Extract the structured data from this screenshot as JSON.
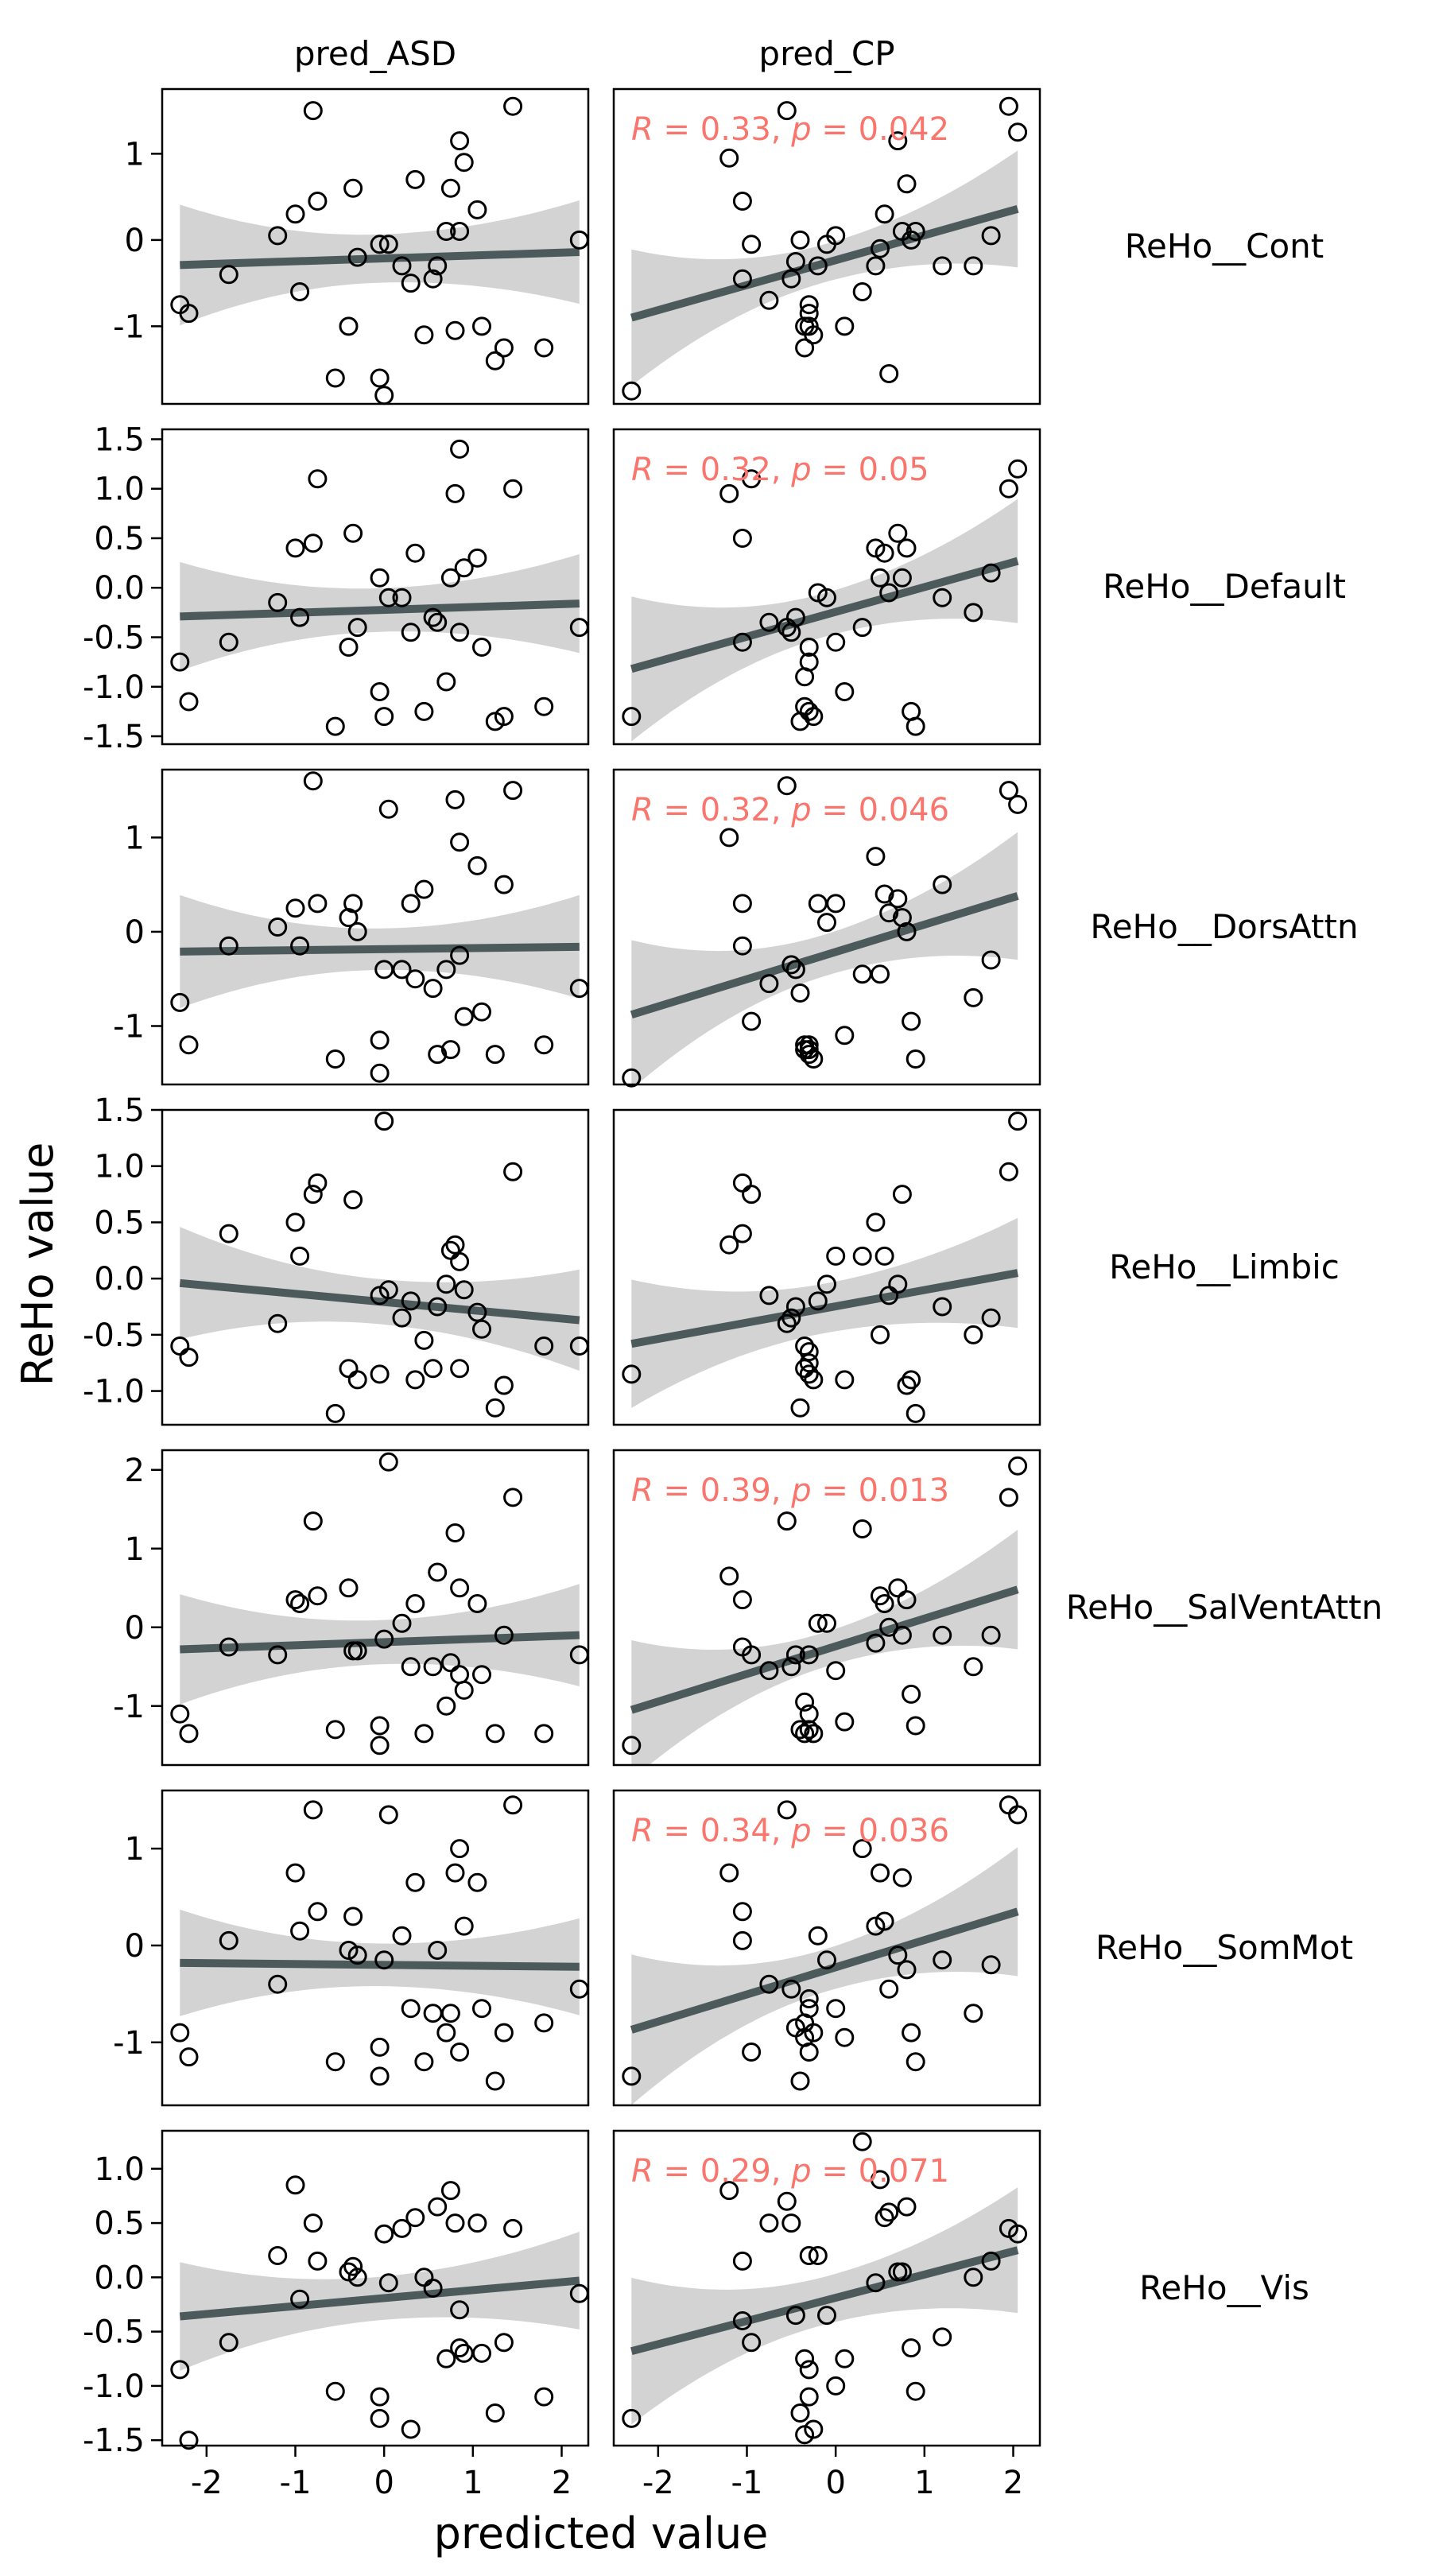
{
  "chart_data": {
    "type": "scatter",
    "xlabel": "predicted value",
    "ylabel": "ReHo value",
    "columns": [
      "pred_ASD",
      "pred_CP"
    ],
    "rows": [
      "ReHo__Cont",
      "ReHo__Default",
      "ReHo__DorsAttn",
      "ReHo__Limbic",
      "ReHo__SalVentAttn",
      "ReHo__SomMot",
      "ReHo__Vis"
    ],
    "xlim": [
      -2.5,
      2.3
    ],
    "x_ticks": [
      "-2",
      "-1",
      "0",
      "1",
      "2"
    ],
    "x_tick_values": [
      -2,
      -1,
      0,
      1,
      2
    ],
    "colors": {
      "points": "#000000",
      "fit_line": "#4d5a5c",
      "ci_band": "#d3d3d3",
      "annotation": "#f8766d"
    },
    "ASD_x": [
      -2.3,
      -2.2,
      -1.75,
      -1.2,
      -1.0,
      -0.95,
      -0.8,
      -0.75,
      -0.55,
      -0.4,
      -0.35,
      -0.3,
      -0.05,
      -0.05,
      0.0,
      0.05,
      0.2,
      0.3,
      0.35,
      0.45,
      0.55,
      0.6,
      0.7,
      0.75,
      0.8,
      0.85,
      0.85,
      0.9,
      1.05,
      1.1,
      1.25,
      1.35,
      1.45,
      1.8,
      2.2
    ],
    "CP_x": [
      -2.3,
      -1.2,
      -1.05,
      -1.05,
      -0.95,
      -0.75,
      -0.55,
      -0.5,
      -0.45,
      -0.4,
      -0.35,
      -0.35,
      -0.3,
      -0.3,
      -0.3,
      -0.25,
      -0.2,
      -0.1,
      0.0,
      0.1,
      0.3,
      0.45,
      0.5,
      0.55,
      0.6,
      0.7,
      0.75,
      0.8,
      0.85,
      0.9,
      1.2,
      1.55,
      1.75,
      1.95,
      2.05
    ],
    "panels": [
      {
        "row": "ReHo__Cont",
        "ylim": [
          -1.9,
          1.75
        ],
        "y_ticks": [
          "-1",
          "0",
          "1"
        ],
        "y_tick_values": [
          -1,
          0,
          1
        ],
        "ASD": {
          "y": [
            -0.75,
            -0.85,
            -0.4,
            0.05,
            0.3,
            -0.6,
            1.5,
            0.45,
            -1.6,
            -1.0,
            0.6,
            -0.2,
            -0.05,
            -1.6,
            -1.8,
            -0.05,
            -0.3,
            -0.5,
            0.7,
            -1.1,
            -0.45,
            -0.3,
            0.1,
            0.6,
            -1.05,
            0.1,
            1.15,
            0.9,
            0.35,
            -1.0,
            -1.4,
            -1.25,
            1.55,
            -1.25,
            0.0
          ],
          "fit": [
            -2.3,
            -0.29,
            2.2,
            -0.14
          ],
          "ci_half": [
            0.7,
            0.28,
            0.6
          ]
        },
        "CP": {
          "y": [
            -1.75,
            0.95,
            0.45,
            -0.45,
            -0.05,
            -0.7,
            1.5,
            -0.45,
            -0.25,
            0.0,
            -1.0,
            -1.25,
            -0.85,
            -0.75,
            -1.0,
            -1.1,
            -0.3,
            -0.05,
            0.05,
            -1.0,
            -0.6,
            -0.3,
            -0.1,
            0.3,
            -1.55,
            1.15,
            0.1,
            0.65,
            0.0,
            0.1,
            -0.3,
            -0.3,
            0.05,
            1.55,
            1.25
          ],
          "fit": [
            -2.3,
            -0.9,
            2.05,
            0.36
          ],
          "annotation": {
            "R": "0.33",
            "p": "0.042"
          }
        }
      },
      {
        "row": "ReHo__Default",
        "ylim": [
          -1.58,
          1.6
        ],
        "y_ticks": [
          "-1.5",
          "-1.0",
          "-0.5",
          "0.0",
          "0.5",
          "1.0",
          "1.5"
        ],
        "y_tick_values": [
          -1.5,
          -1.0,
          -0.5,
          0.0,
          0.5,
          1.0,
          1.5
        ],
        "ASD": {
          "y": [
            -0.75,
            -1.15,
            -0.55,
            -0.15,
            0.4,
            -0.3,
            0.45,
            1.1,
            -1.4,
            -0.6,
            0.55,
            -0.4,
            0.1,
            -1.05,
            -1.3,
            -0.1,
            -0.1,
            -0.45,
            0.35,
            -1.25,
            -0.3,
            -0.35,
            -0.95,
            0.1,
            0.95,
            1.4,
            -0.45,
            0.2,
            0.3,
            -0.6,
            -1.35,
            -1.3,
            1.0,
            -1.2,
            -0.4
          ],
          "fit": [
            -2.3,
            -0.29,
            2.2,
            -0.16
          ],
          "ci_half": [
            0.55,
            0.22,
            0.5
          ]
        },
        "CP": {
          "y": [
            -1.3,
            0.95,
            0.5,
            -0.55,
            1.1,
            -0.35,
            -0.4,
            -0.45,
            -0.3,
            -1.35,
            -0.9,
            -1.2,
            -0.6,
            -0.75,
            -1.25,
            -1.3,
            -0.05,
            -0.1,
            -0.55,
            -1.05,
            -0.4,
            0.4,
            0.1,
            0.35,
            -0.05,
            0.55,
            0.1,
            0.4,
            -1.25,
            -1.4,
            -0.1,
            -0.25,
            0.15,
            1.0,
            1.2
          ],
          "fit": [
            -2.3,
            -0.82,
            2.05,
            0.27
          ],
          "annotation": {
            "R": "0.32",
            "p": "0.05"
          }
        }
      },
      {
        "row": "ReHo__DorsAttn",
        "ylim": [
          -1.62,
          1.72
        ],
        "y_ticks": [
          "-1",
          "0",
          "1"
        ],
        "y_tick_values": [
          -1,
          0,
          1
        ],
        "ASD": {
          "y": [
            -0.75,
            -1.2,
            -0.15,
            0.05,
            0.25,
            -0.15,
            1.6,
            0.3,
            -1.35,
            0.15,
            0.3,
            0.0,
            -1.15,
            -1.5,
            -0.4,
            1.3,
            -0.4,
            0.3,
            -0.5,
            0.45,
            -0.6,
            -1.3,
            -0.4,
            -1.25,
            1.4,
            -0.25,
            0.95,
            -0.9,
            0.7,
            -0.85,
            -1.3,
            0.5,
            1.5,
            -1.2,
            -0.6
          ],
          "fit": [
            -2.3,
            -0.21,
            2.2,
            -0.16
          ],
          "ci_half": [
            0.6,
            0.22,
            0.55
          ]
        },
        "CP": {
          "y": [
            -1.55,
            1.0,
            0.3,
            -0.15,
            -0.95,
            -0.55,
            1.55,
            -0.35,
            -0.4,
            -0.65,
            -1.25,
            -1.2,
            -1.3,
            -1.25,
            -1.2,
            -1.35,
            0.3,
            0.1,
            0.3,
            -1.1,
            -0.45,
            0.8,
            -0.45,
            0.4,
            0.2,
            0.35,
            0.15,
            0.0,
            -0.95,
            -1.35,
            0.5,
            -0.7,
            -0.3,
            1.5,
            1.35
          ],
          "fit": [
            -2.3,
            -0.88,
            2.05,
            0.38
          ],
          "annotation": {
            "R": "0.32",
            "p": "0.046"
          }
        }
      },
      {
        "row": "ReHo__Limbic",
        "ylim": [
          -1.3,
          1.5
        ],
        "y_ticks": [
          "-1.0",
          "-0.5",
          "0.0",
          "0.5",
          "1.0",
          "1.5"
        ],
        "y_tick_values": [
          -1.0,
          -0.5,
          0.0,
          0.5,
          1.0,
          1.5
        ],
        "ASD": {
          "y": [
            -0.6,
            -0.7,
            0.4,
            -0.4,
            0.5,
            0.2,
            0.75,
            0.85,
            -1.2,
            -0.8,
            0.7,
            -0.9,
            -0.85,
            -0.15,
            1.4,
            -0.1,
            -0.35,
            -0.2,
            -0.9,
            -0.55,
            -0.8,
            -0.25,
            -0.05,
            0.25,
            0.3,
            0.15,
            -0.8,
            -0.1,
            -0.3,
            -0.45,
            -1.15,
            -0.95,
            0.95,
            -0.6,
            -0.6
          ],
          "fit": [
            -2.3,
            -0.04,
            2.2,
            -0.37
          ],
          "ci_half": [
            0.5,
            0.2,
            0.45
          ]
        },
        "CP": {
          "y": [
            -0.85,
            0.3,
            0.85,
            0.4,
            0.75,
            -0.15,
            -0.4,
            -0.35,
            -0.25,
            -1.15,
            -0.6,
            -0.8,
            -0.65,
            -0.75,
            -0.85,
            -0.9,
            -0.2,
            -0.05,
            0.2,
            -0.9,
            0.2,
            0.5,
            -0.5,
            0.2,
            -0.15,
            -0.05,
            0.75,
            -0.95,
            -0.9,
            -1.2,
            -0.25,
            -0.5,
            -0.35,
            0.95,
            1.4
          ],
          "fit": [
            -2.3,
            -0.58,
            2.05,
            0.05
          ],
          "annotation": null
        }
      },
      {
        "row": "ReHo__SalVentAttn",
        "ylim": [
          -1.75,
          2.25
        ],
        "y_ticks": [
          "-1",
          "0",
          "1",
          "2"
        ],
        "y_tick_values": [
          -1,
          0,
          1,
          2
        ],
        "ASD": {
          "y": [
            -1.1,
            -1.35,
            -0.25,
            -0.35,
            0.35,
            0.3,
            1.35,
            0.4,
            -1.3,
            0.5,
            -0.3,
            -0.3,
            -1.5,
            -1.25,
            -0.15,
            2.1,
            0.05,
            -0.5,
            0.3,
            -1.35,
            -0.5,
            0.7,
            -1.0,
            -0.45,
            1.2,
            0.5,
            -0.6,
            -0.8,
            0.3,
            -0.6,
            -1.35,
            -0.1,
            1.65,
            -1.35,
            -0.35
          ],
          "fit": [
            -2.3,
            -0.28,
            2.2,
            -0.1
          ],
          "ci_half": [
            0.7,
            0.28,
            0.65
          ]
        },
        "CP": {
          "y": [
            -1.5,
            0.65,
            0.35,
            -0.25,
            -0.35,
            -0.55,
            1.35,
            -0.5,
            -0.35,
            -1.3,
            -0.95,
            -1.35,
            -1.1,
            -1.3,
            -0.35,
            -1.35,
            0.05,
            0.05,
            -0.55,
            -1.2,
            1.25,
            -0.2,
            0.4,
            0.3,
            0.0,
            0.5,
            -0.1,
            0.35,
            -0.85,
            -1.25,
            -0.1,
            -0.5,
            -0.1,
            1.65,
            2.05
          ],
          "fit": [
            -2.3,
            -1.05,
            2.05,
            0.48
          ],
          "annotation": {
            "R": "0.39",
            "p": "0.013"
          }
        }
      },
      {
        "row": "ReHo__SomMot",
        "ylim": [
          -1.65,
          1.6
        ],
        "y_ticks": [
          "-1",
          "0",
          "1"
        ],
        "y_tick_values": [
          -1,
          0,
          1
        ],
        "ASD": {
          "y": [
            -0.9,
            -1.15,
            0.05,
            -0.4,
            0.75,
            0.15,
            1.4,
            0.35,
            -1.2,
            -0.05,
            0.3,
            -0.1,
            -1.35,
            -1.05,
            -0.15,
            1.35,
            0.1,
            -0.65,
            0.65,
            -1.2,
            -0.7,
            -0.05,
            -0.9,
            -0.7,
            0.75,
            1.0,
            -1.1,
            0.2,
            0.65,
            -0.65,
            -1.4,
            -0.9,
            1.45,
            -0.8,
            -0.45
          ],
          "fit": [
            -2.3,
            -0.18,
            2.2,
            -0.22
          ],
          "ci_half": [
            0.55,
            0.22,
            0.5
          ]
        },
        "CP": {
          "y": [
            -1.35,
            0.75,
            0.35,
            0.05,
            -1.1,
            -0.4,
            1.4,
            -0.45,
            -0.85,
            -1.4,
            -0.8,
            -0.95,
            -0.55,
            -1.1,
            -0.65,
            -0.9,
            0.1,
            -0.15,
            -0.65,
            -0.95,
            1.0,
            0.2,
            0.75,
            0.25,
            -0.45,
            -0.1,
            0.7,
            -0.25,
            -0.9,
            -1.2,
            -0.15,
            -0.7,
            -0.2,
            1.45,
            1.35
          ],
          "fit": [
            -2.3,
            -0.87,
            2.05,
            0.35
          ],
          "annotation": {
            "R": "0.34",
            "p": "0.036"
          }
        }
      },
      {
        "row": "ReHo__Vis",
        "ylim": [
          -1.55,
          1.35
        ],
        "y_ticks": [
          "-1.5",
          "-1.0",
          "-0.5",
          "0.0",
          "0.5",
          "1.0"
        ],
        "y_tick_values": [
          -1.5,
          -1.0,
          -0.5,
          0.0,
          0.5,
          1.0
        ],
        "ASD": {
          "y": [
            -0.85,
            -1.5,
            -0.6,
            0.2,
            0.85,
            -0.2,
            0.5,
            0.15,
            -1.05,
            0.05,
            0.1,
            0.0,
            -1.1,
            -1.3,
            0.4,
            -0.05,
            0.45,
            -1.4,
            0.55,
            0.0,
            -0.1,
            0.65,
            -0.75,
            0.8,
            0.5,
            -0.3,
            -0.65,
            -0.7,
            0.5,
            -0.7,
            -1.25,
            -0.6,
            0.45,
            -1.1,
            -0.15
          ],
          "fit": [
            -2.3,
            -0.36,
            2.2,
            -0.03
          ],
          "ci_half": [
            0.5,
            0.2,
            0.45
          ]
        },
        "CP": {
          "y": [
            -1.3,
            0.8,
            0.15,
            -0.4,
            -0.6,
            0.5,
            0.7,
            0.5,
            -0.35,
            -1.25,
            -0.75,
            -1.45,
            -0.85,
            -1.1,
            0.2,
            -1.4,
            0.2,
            -0.35,
            -1.0,
            -0.75,
            1.25,
            -0.05,
            0.9,
            0.55,
            0.6,
            0.05,
            0.05,
            0.65,
            -0.65,
            -1.05,
            -0.55,
            0.0,
            0.15,
            0.45,
            0.4
          ],
          "fit": [
            -2.3,
            -0.68,
            2.05,
            0.25
          ],
          "annotation": {
            "R": "0.29",
            "p": "0.071"
          }
        }
      }
    ]
  }
}
